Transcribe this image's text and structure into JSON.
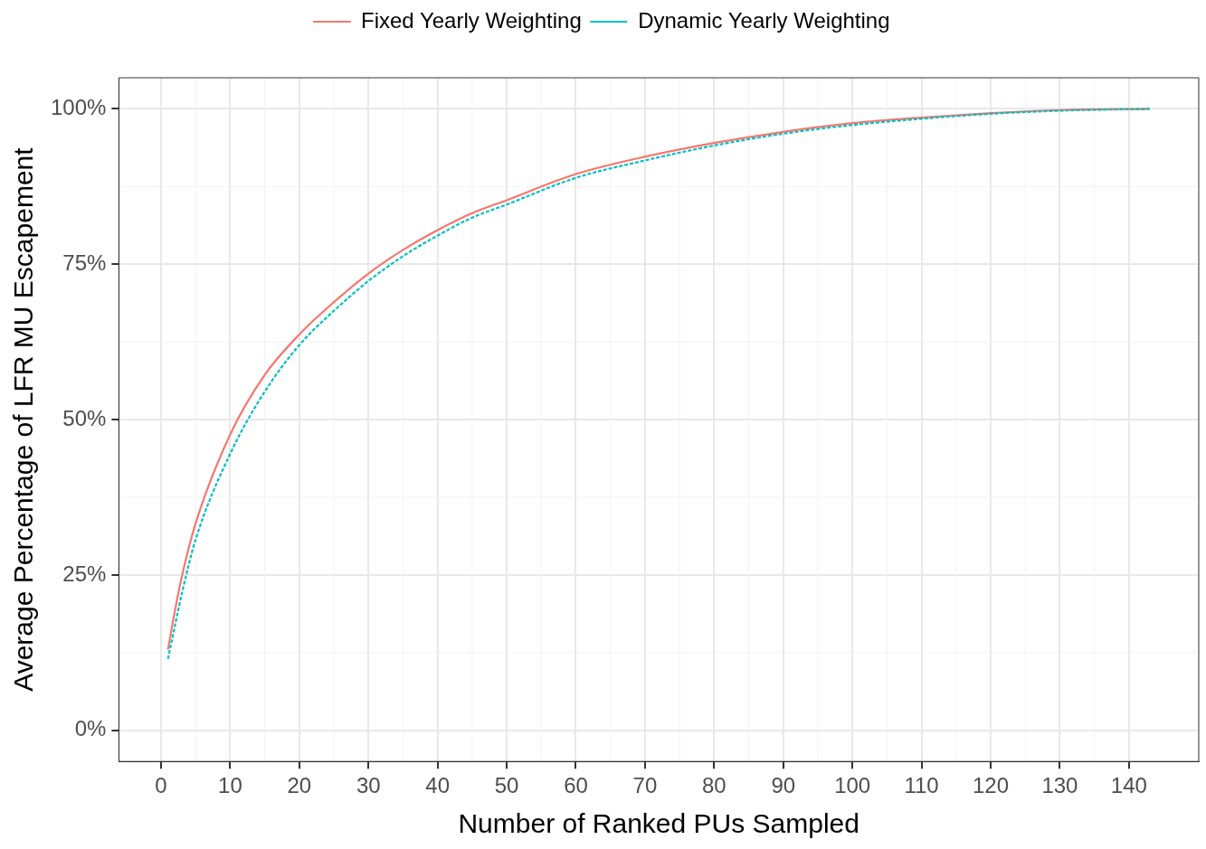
{
  "chart_data": {
    "type": "line",
    "xlabel": "Number of Ranked PUs Sampled",
    "ylabel": "Average Percentage of LFR MU Escapement",
    "x": [
      1,
      2,
      3,
      5,
      10,
      15,
      20,
      25,
      30,
      35,
      40,
      45,
      50,
      60,
      70,
      80,
      90,
      100,
      110,
      120,
      130,
      143
    ],
    "series": [
      {
        "name": "Fixed Yearly Weighting",
        "color": "#f8766d",
        "line_style": "solid",
        "values": [
          13,
          19.2,
          24.7,
          33.3,
          47.6,
          57.2,
          63.7,
          68.9,
          73.5,
          77.3,
          80.5,
          83.2,
          85.3,
          89.5,
          92.3,
          94.5,
          96.3,
          97.7,
          98.6,
          99.3,
          99.8,
          100
        ]
      },
      {
        "name": "Dynamic Yearly Weighting",
        "color": "#00bfc4",
        "line_style": "dashed",
        "values": [
          11.5,
          16.8,
          22,
          30.7,
          44.5,
          54.5,
          62,
          67.5,
          72.3,
          76.3,
          79.6,
          82.5,
          84.6,
          88.9,
          91.7,
          94.1,
          96,
          97.4,
          98.4,
          99.2,
          99.7,
          100
        ]
      }
    ],
    "xlim": [
      -6.1,
      150.1
    ],
    "xticks": [
      0,
      10,
      20,
      30,
      40,
      50,
      60,
      70,
      80,
      90,
      100,
      110,
      120,
      130,
      140
    ],
    "ylim": [
      -5,
      105
    ],
    "yticks": [
      {
        "value": 0,
        "label": "0%"
      },
      {
        "value": 25,
        "label": "25%"
      },
      {
        "value": 50,
        "label": "50%"
      },
      {
        "value": 75,
        "label": "75%"
      },
      {
        "value": 100,
        "label": "100%"
      }
    ],
    "grid": true,
    "legend": "top",
    "marker": "none"
  }
}
